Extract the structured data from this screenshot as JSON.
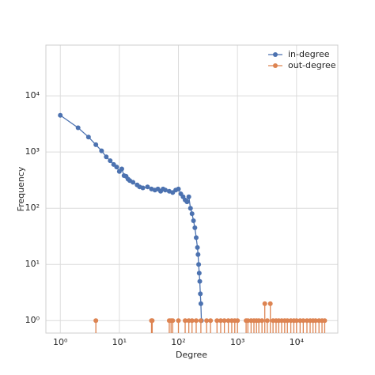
{
  "chart_data": {
    "type": "line",
    "x_label": "Degree",
    "y_label": "Frequency",
    "x_scale": "log",
    "y_scale": "log",
    "grid": true,
    "legend": "upper right",
    "xlim": [
      0.57,
      50000
    ],
    "ylim": [
      0.6,
      80000
    ],
    "xticks": [
      {
        "value": 1,
        "label": "10⁰"
      },
      {
        "value": 10,
        "label": "10¹"
      },
      {
        "value": 100,
        "label": "10²"
      },
      {
        "value": 1000,
        "label": "10³"
      },
      {
        "value": 10000,
        "label": "10⁴"
      }
    ],
    "yticks": [
      {
        "value": 1,
        "label": "10⁰"
      },
      {
        "value": 10,
        "label": "10¹"
      },
      {
        "value": 100,
        "label": "10²"
      },
      {
        "value": 1000,
        "label": "10³"
      },
      {
        "value": 10000,
        "label": "10⁴"
      }
    ],
    "series": [
      {
        "name": "in-degree",
        "color": "#4c72b0",
        "style": "line",
        "x": [
          1,
          2,
          3,
          4,
          5,
          6,
          7,
          8,
          9,
          10,
          11,
          12,
          13,
          14,
          15,
          17,
          20,
          22,
          25,
          30,
          35,
          40,
          45,
          50,
          55,
          60,
          70,
          80,
          90,
          100,
          110,
          120,
          130,
          140,
          150,
          160,
          170,
          180,
          190,
          200,
          210,
          215,
          220,
          225,
          230,
          235,
          240,
          245
        ],
        "values": [
          4500,
          2700,
          1850,
          1350,
          1050,
          820,
          700,
          600,
          540,
          450,
          500,
          380,
          370,
          330,
          310,
          290,
          260,
          240,
          230,
          240,
          220,
          210,
          220,
          200,
          220,
          210,
          200,
          190,
          210,
          220,
          180,
          160,
          140,
          130,
          160,
          100,
          80,
          60,
          45,
          30,
          20,
          15,
          10,
          7,
          5,
          3,
          2,
          1
        ]
      },
      {
        "name": "out-degree",
        "color": "#dd8452",
        "style": "stem",
        "x": [
          4,
          35,
          36,
          70,
          75,
          80,
          100,
          130,
          150,
          170,
          200,
          240,
          300,
          350,
          450,
          520,
          600,
          700,
          800,
          900,
          1000,
          1400,
          1500,
          1700,
          1900,
          2100,
          2300,
          2600,
          2900,
          3200,
          3600,
          4000,
          4500,
          5000,
          5600,
          6300,
          7000,
          8000,
          9000,
          10000,
          11500,
          13000,
          15000,
          17000,
          19000,
          21000,
          24000,
          27000,
          30000
        ],
        "values": [
          1,
          1,
          1,
          1,
          1,
          1,
          1,
          1,
          1,
          1,
          1,
          1,
          1,
          1,
          1,
          1,
          1,
          1,
          1,
          1,
          1,
          1,
          1,
          1,
          1,
          1,
          1,
          1,
          2,
          1,
          2,
          1,
          1,
          1,
          1,
          1,
          1,
          1,
          1,
          1,
          1,
          1,
          1,
          1,
          1,
          1,
          1,
          1,
          1
        ]
      }
    ]
  }
}
